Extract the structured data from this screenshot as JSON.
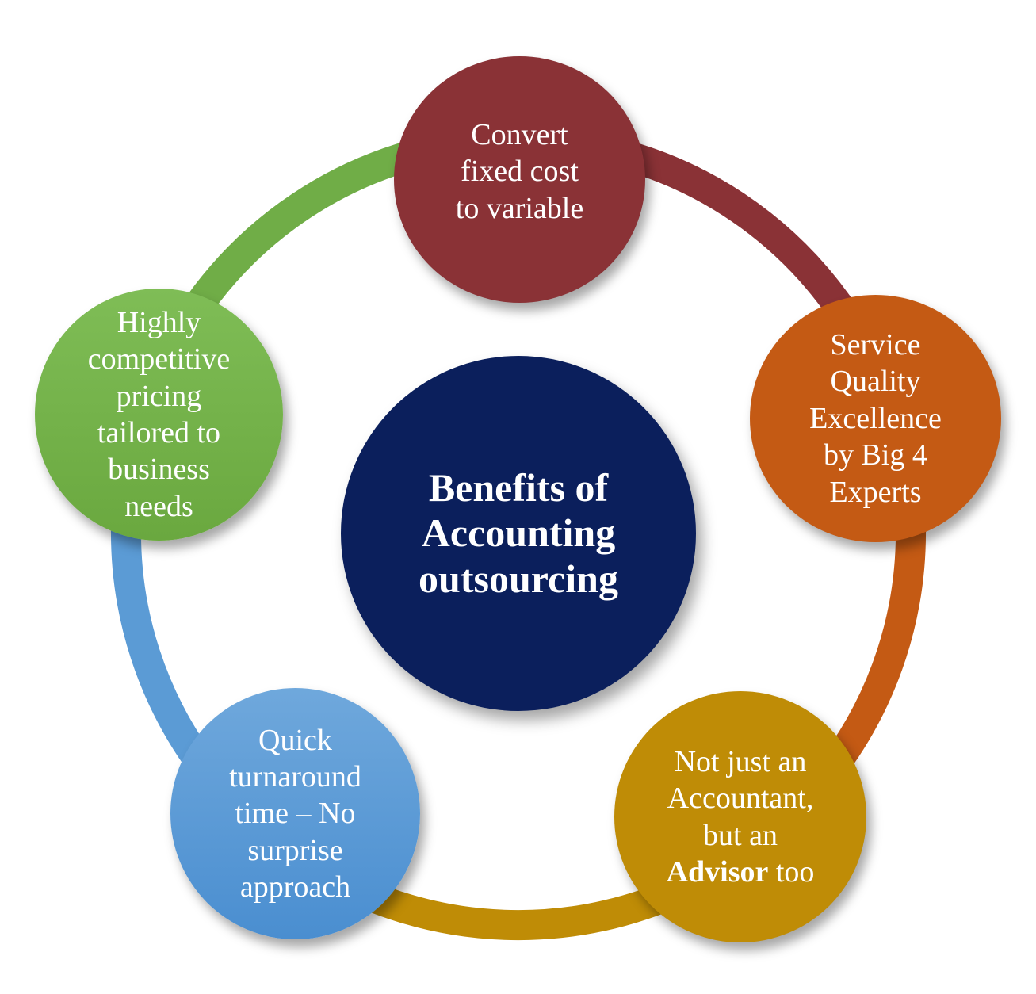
{
  "diagram": {
    "center": {
      "lines": [
        "Benefits of",
        "Accounting",
        "outsourcing"
      ]
    },
    "nodes": [
      {
        "id": "red",
        "color": "#8a3236",
        "lines": [
          "Convert",
          "fixed cost",
          "to variable"
        ]
      },
      {
        "id": "orange",
        "color": "#c45a14",
        "lines": [
          "Service",
          "Quality",
          "Excellence",
          "by Big 4",
          "Experts"
        ]
      },
      {
        "id": "gold",
        "color": "#bf8c06",
        "lines": [
          "Not just an",
          "Accountant,",
          "but an"
        ],
        "last_bold": "Advisor",
        "last_rest": " too"
      },
      {
        "id": "blue",
        "color": "#5b9bd5",
        "lines": [
          "Quick",
          "turnaround",
          "time – No",
          "surprise",
          "approach"
        ]
      },
      {
        "id": "green",
        "color": "#70ad47",
        "lines": [
          "Highly",
          "competitive",
          "pricing",
          "tailored to",
          "business",
          "needs"
        ]
      }
    ],
    "arc_colors": [
      "#8a3236",
      "#c45a14",
      "#bf8c06",
      "#5b9bd5",
      "#70ad47"
    ]
  }
}
